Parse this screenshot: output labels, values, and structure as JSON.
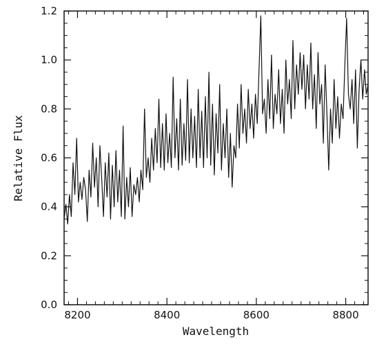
{
  "chart_data": {
    "type": "line",
    "xlabel": "Wavelength",
    "ylabel": "Relative Flux",
    "xlim": [
      8170,
      8850
    ],
    "ylim": [
      0,
      1.2
    ],
    "x_ticks": [
      {
        "value": 8200,
        "label": "8200"
      },
      {
        "value": 8400,
        "label": "8400"
      },
      {
        "value": 8600,
        "label": "8600"
      },
      {
        "value": 8800,
        "label": "8800"
      }
    ],
    "y_ticks": [
      {
        "value": 0,
        "label": "0.0"
      },
      {
        "value": 0.2,
        "label": "0.2"
      },
      {
        "value": 0.4,
        "label": "0.4"
      },
      {
        "value": 0.6,
        "label": "0.6"
      },
      {
        "value": 0.8,
        "label": "0.8"
      },
      {
        "value": 1.0,
        "label": "1.0"
      },
      {
        "value": 1.2,
        "label": "1.2"
      }
    ],
    "grid": false,
    "series": [
      {
        "line_color": "#111111",
        "x": [
          8170,
          8174,
          8178,
          8182,
          8186,
          8190,
          8194,
          8198,
          8202,
          8206,
          8210,
          8214,
          8218,
          8222,
          8226,
          8230,
          8234,
          8238,
          8242,
          8246,
          8250,
          8254,
          8258,
          8262,
          8266,
          8270,
          8274,
          8278,
          8282,
          8286,
          8290,
          8294,
          8298,
          8302,
          8306,
          8310,
          8314,
          8318,
          8322,
          8326,
          8330,
          8334,
          8338,
          8342,
          8346,
          8350,
          8354,
          8358,
          8362,
          8366,
          8370,
          8374,
          8378,
          8382,
          8386,
          8390,
          8394,
          8398,
          8402,
          8406,
          8410,
          8414,
          8418,
          8422,
          8426,
          8430,
          8434,
          8438,
          8442,
          8446,
          8450,
          8454,
          8458,
          8462,
          8466,
          8470,
          8474,
          8478,
          8482,
          8486,
          8490,
          8494,
          8498,
          8502,
          8506,
          8510,
          8514,
          8518,
          8522,
          8526,
          8530,
          8534,
          8538,
          8542,
          8546,
          8550,
          8554,
          8558,
          8562,
          8566,
          8570,
          8574,
          8578,
          8582,
          8586,
          8590,
          8594,
          8598,
          8602,
          8606,
          8610,
          8614,
          8618,
          8622,
          8626,
          8630,
          8634,
          8638,
          8642,
          8646,
          8650,
          8654,
          8658,
          8662,
          8666,
          8670,
          8674,
          8678,
          8682,
          8686,
          8690,
          8694,
          8698,
          8702,
          8706,
          8710,
          8714,
          8718,
          8722,
          8726,
          8730,
          8734,
          8738,
          8742,
          8746,
          8750,
          8754,
          8758,
          8762,
          8766,
          8770,
          8774,
          8778,
          8782,
          8786,
          8790,
          8794,
          8798,
          8802,
          8806,
          8810,
          8814,
          8818,
          8822,
          8826,
          8830,
          8834,
          8838,
          8842,
          8846,
          8850
        ],
        "y": [
          0.35,
          0.41,
          0.33,
          0.45,
          0.36,
          0.58,
          0.45,
          0.68,
          0.42,
          0.5,
          0.43,
          0.52,
          0.47,
          0.34,
          0.55,
          0.44,
          0.66,
          0.48,
          0.6,
          0.4,
          0.65,
          0.52,
          0.36,
          0.58,
          0.44,
          0.62,
          0.35,
          0.57,
          0.4,
          0.63,
          0.42,
          0.55,
          0.36,
          0.73,
          0.35,
          0.52,
          0.4,
          0.56,
          0.36,
          0.49,
          0.45,
          0.52,
          0.42,
          0.55,
          0.47,
          0.8,
          0.52,
          0.6,
          0.5,
          0.68,
          0.55,
          0.72,
          0.58,
          0.84,
          0.56,
          0.74,
          0.55,
          0.78,
          0.58,
          0.7,
          0.56,
          0.93,
          0.6,
          0.76,
          0.55,
          0.84,
          0.57,
          0.74,
          0.59,
          0.92,
          0.58,
          0.8,
          0.6,
          0.77,
          0.56,
          0.88,
          0.6,
          0.79,
          0.56,
          0.85,
          0.6,
          0.95,
          0.57,
          0.82,
          0.53,
          0.78,
          0.62,
          0.9,
          0.55,
          0.74,
          0.6,
          0.8,
          0.52,
          0.7,
          0.48,
          0.65,
          0.6,
          0.82,
          0.64,
          0.9,
          0.7,
          0.8,
          0.66,
          0.88,
          0.72,
          0.82,
          0.68,
          0.86,
          0.74,
          0.96,
          1.18,
          0.78,
          0.84,
          0.7,
          0.92,
          0.76,
          1.02,
          0.72,
          0.86,
          0.78,
          0.96,
          0.74,
          0.88,
          0.7,
          1.0,
          0.82,
          0.92,
          0.76,
          1.08,
          0.8,
          0.98,
          0.86,
          1.03,
          0.88,
          1.02,
          0.8,
          0.98,
          0.84,
          1.07,
          0.8,
          0.94,
          0.72,
          1.03,
          0.82,
          0.9,
          0.66,
          0.98,
          0.78,
          0.55,
          0.8,
          0.66,
          0.92,
          0.72,
          0.85,
          0.68,
          0.82,
          0.76,
          0.98,
          1.17,
          0.86,
          0.8,
          0.92,
          0.74,
          0.96,
          0.64,
          0.88,
          1.0,
          0.84,
          0.96,
          0.86,
          0.9
        ]
      }
    ]
  }
}
